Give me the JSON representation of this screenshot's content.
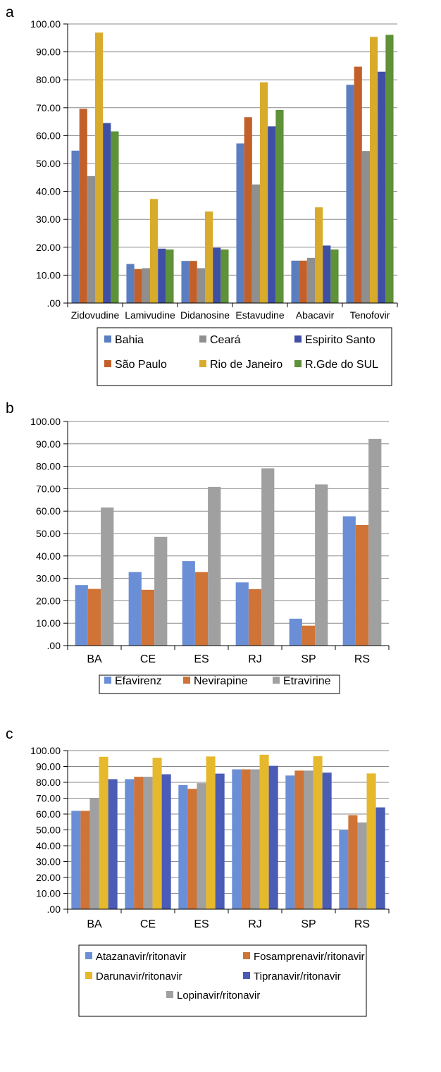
{
  "chart_data": [
    {
      "panel_label": "a",
      "type": "bar",
      "categories": [
        "Zidovudine",
        "Lamivudine",
        "Didanosine",
        "Estavudine",
        "Abacavir",
        "Tenofovir"
      ],
      "ylim": [
        0,
        100
      ],
      "yticks": [
        ".00",
        "10.00",
        "20.00",
        "30.00",
        "40.00",
        "50.00",
        "60.00",
        "70.00",
        "80.00",
        "90.00",
        "100.00"
      ],
      "grid": true,
      "legend_position": "bottom",
      "series": [
        {
          "name": "Bahia",
          "color": "#5b7ec1",
          "values": [
            54.6,
            14.0,
            15.1,
            57.2,
            15.2,
            78.2
          ]
        },
        {
          "name": "São Paulo",
          "color": "#c3602a",
          "values": [
            69.6,
            12.2,
            15.1,
            66.6,
            15.2,
            84.7
          ]
        },
        {
          "name": "Ceará",
          "color": "#8f8f8f",
          "values": [
            45.5,
            12.5,
            12.5,
            42.5,
            16.2,
            54.5
          ]
        },
        {
          "name": "Rio de Janeiro",
          "color": "#d9ab2c",
          "values": [
            96.9,
            37.3,
            32.8,
            79.1,
            34.3,
            95.4
          ]
        },
        {
          "name": "Espirito Santo",
          "color": "#3f4fa6",
          "values": [
            64.5,
            19.5,
            19.8,
            63.3,
            20.6,
            82.9
          ]
        },
        {
          "name": "R.Gde do SUL",
          "color": "#5f9138",
          "values": [
            61.5,
            19.2,
            19.2,
            69.2,
            19.2,
            96.1
          ]
        }
      ],
      "legend_columns": [
        [
          "Bahia",
          "Ceará",
          "Espirito Santo"
        ],
        [
          "São Paulo",
          "Rio de Janeiro",
          "R.Gde do SUL"
        ]
      ]
    },
    {
      "panel_label": "b",
      "type": "bar",
      "categories": [
        "BA",
        "CE",
        "ES",
        "RJ",
        "SP",
        "RS"
      ],
      "ylim": [
        0,
        100
      ],
      "yticks": [
        ".00",
        "10.00",
        "20.00",
        "30.00",
        "40.00",
        "50.00",
        "60.00",
        "70.00",
        "80.00",
        "90.00",
        "100.00"
      ],
      "grid": true,
      "legend_position": "bottom",
      "series": [
        {
          "name": "Efavirenz",
          "color": "#6b8fd6",
          "values": [
            27.0,
            32.8,
            37.7,
            28.2,
            12.0,
            57.7
          ]
        },
        {
          "name": "Nevirapine",
          "color": "#d07336",
          "values": [
            25.3,
            24.9,
            32.8,
            25.2,
            8.9,
            53.8
          ]
        },
        {
          "name": "Etravirine",
          "color": "#a0a0a0",
          "values": [
            61.6,
            48.5,
            70.8,
            79.1,
            71.9,
            92.2
          ]
        }
      ],
      "legend_columns": [
        [
          "Efavirenz"
        ],
        [
          "Nevirapine"
        ],
        [
          "Etravirine"
        ]
      ]
    },
    {
      "panel_label": "c",
      "type": "bar",
      "categories": [
        "BA",
        "CE",
        "ES",
        "RJ",
        "SP",
        "RS"
      ],
      "ylim": [
        0,
        100
      ],
      "yticks": [
        ".00",
        "10.00",
        "20.00",
        "30.00",
        "40.00",
        "50.00",
        "60.00",
        "70.00",
        "80.00",
        "90.00",
        "100.00"
      ],
      "grid": true,
      "legend_position": "bottom",
      "series": [
        {
          "name": "Atazanavir/ritonavir",
          "color": "#6b8fd6",
          "values": [
            62.0,
            82.0,
            78.3,
            88.2,
            84.3,
            50.0
          ]
        },
        {
          "name": "Fosamprenavir/ritonavir",
          "color": "#d07336",
          "values": [
            62.0,
            83.5,
            75.9,
            88.2,
            87.4,
            59.3
          ]
        },
        {
          "name": "Lopinavir/ritonavir",
          "color": "#a0a0a0",
          "values": [
            70.0,
            83.5,
            79.5,
            88.2,
            87.4,
            54.7
          ]
        },
        {
          "name": "Darunavir/ritonavir",
          "color": "#e6b92c",
          "values": [
            96.1,
            95.5,
            96.3,
            97.4,
            96.5,
            85.6
          ]
        },
        {
          "name": "Tipranavir/ritonavir",
          "color": "#4a5cb5",
          "values": [
            82.0,
            85.1,
            85.5,
            90.4,
            86.1,
            64.2
          ]
        }
      ],
      "legend_columns": [
        [
          "Atazanavir/ritonavir",
          "Fosamprenavir/ritonavir"
        ],
        [
          "Darunavir/ritonavir",
          "Tipranavir/ritonavir"
        ],
        [
          "Lopinavir/ritonavir"
        ]
      ]
    }
  ]
}
